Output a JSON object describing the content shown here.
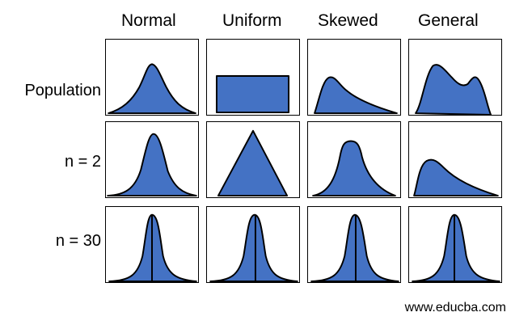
{
  "columns": [
    "Normal",
    "Uniform",
    "Skewed",
    "General"
  ],
  "rows": [
    "Population",
    "n = 2",
    "n = 30"
  ],
  "website": "www.educba.com",
  "colors": {
    "fill": "#4472c4",
    "stroke": "#000000"
  },
  "cells": [
    [
      {
        "shape": "normal-wide"
      },
      {
        "shape": "rectangle"
      },
      {
        "shape": "right-skewed"
      },
      {
        "shape": "bimodal"
      }
    ],
    [
      {
        "shape": "normal"
      },
      {
        "shape": "triangle"
      },
      {
        "shape": "flat-top-skewed"
      },
      {
        "shape": "right-skewed-low"
      }
    ],
    [
      {
        "shape": "normal-narrow-median"
      },
      {
        "shape": "normal-narrow-median"
      },
      {
        "shape": "normal-narrow-median"
      },
      {
        "shape": "normal-narrow-median"
      }
    ]
  ]
}
